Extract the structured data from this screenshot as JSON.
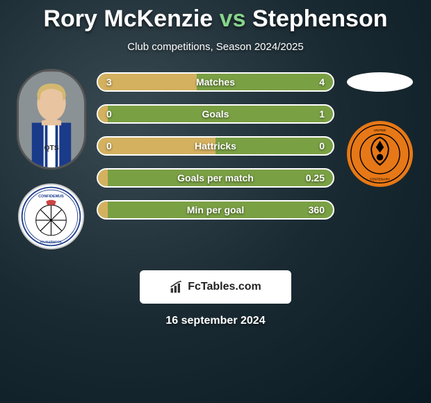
{
  "title": {
    "player1": "Rory McKenzie",
    "vs": "vs",
    "player2": "Stephenson"
  },
  "subtitle": "Club competitions, Season 2024/2025",
  "date": "16 september 2024",
  "watermark": "FcTables.com",
  "colors": {
    "bar_left_fill": "#d4b15f",
    "bar_right_fill": "#7aa044",
    "accent_green": "#86d48a",
    "bg_outer": "#0a1a22",
    "bg_inner": "#3a4a52",
    "dundee_orange": "#e67817"
  },
  "bars": [
    {
      "label": "Matches",
      "left": "3",
      "right": "4",
      "left_pct": 42
    },
    {
      "label": "Goals",
      "left": "0",
      "right": "1",
      "left_pct": 4
    },
    {
      "label": "Hattricks",
      "left": "0",
      "right": "0",
      "left_pct": 50
    },
    {
      "label": "Goals per match",
      "left": "",
      "right": "0.25",
      "left_pct": 4
    },
    {
      "label": "Min per goal",
      "left": "",
      "right": "360",
      "left_pct": 4
    }
  ]
}
